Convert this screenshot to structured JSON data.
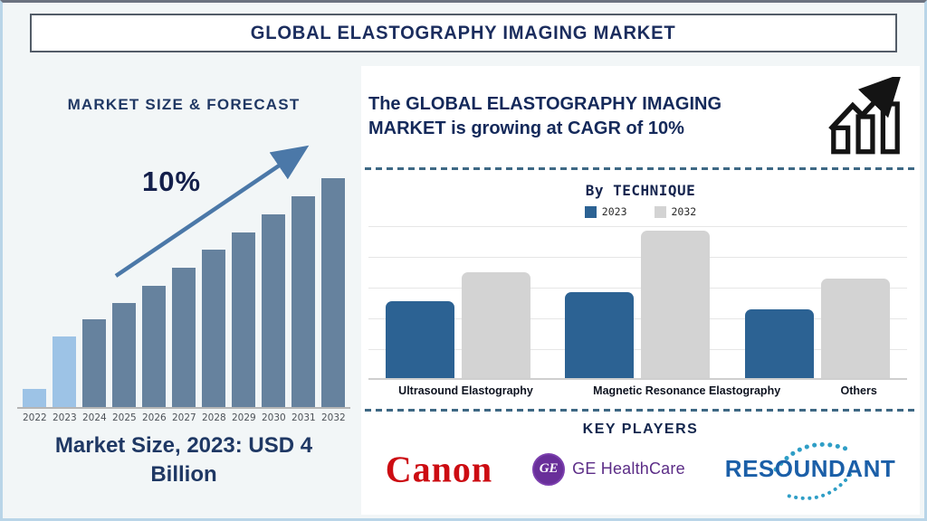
{
  "title_bar": {
    "text": "GLOBAL ELASTOGRAPHY IMAGING MARKET"
  },
  "theme": {
    "navy_text": "#1b2d5e",
    "dashed_line": "#3e6884",
    "page_background": "#f2f6f7",
    "panel_background": "#ffffff"
  },
  "left_panel": {
    "heading": "MARKET SIZE & FORECAST",
    "growth_label": "10%",
    "trend_arrow": "upward-diagonal-arrow",
    "caption": "Market Size, 2023: USD 4 Billion"
  },
  "right_panel": {
    "cagr_statement": "The GLOBAL ELASTOGRAPHY IMAGING MARKET is growing at CAGR of 10%",
    "growth_icon": "bar-chart-with-up-arrow",
    "technique_section": {
      "heading": "By TECHNIQUE"
    },
    "key_players_section": {
      "heading": "KEY PLAYERS",
      "players": [
        {
          "name": "Canon",
          "brand_color": "#cc0c12"
        },
        {
          "name": "GE HealthCare",
          "monogram": "GE",
          "brand_color": "#5c2d87"
        },
        {
          "name": "RESOUNDANT",
          "brand_color": "#1b5fa8"
        }
      ]
    }
  },
  "chart_data": [
    {
      "type": "bar",
      "title": "MARKET SIZE & FORECAST",
      "categories": [
        "2022",
        "2023",
        "2024",
        "2025",
        "2026",
        "2027",
        "2028",
        "2029",
        "2030",
        "2031",
        "2032"
      ],
      "values": [
        20,
        78,
        97,
        115,
        134,
        154,
        174,
        193,
        213,
        233,
        253
      ],
      "units": "relative bar height (no value axis shown)",
      "annotation": "10% growth trend arrow",
      "known_point": "2023 market size = USD 4 Billion",
      "highlight_categories": [
        "2022",
        "2023"
      ],
      "highlight_color": "#9dc3e6",
      "bar_color": "#66829e",
      "xlabel": "",
      "ylabel": "",
      "grid": false
    },
    {
      "type": "bar",
      "title": "By TECHNIQUE",
      "categories": [
        "Ultrasound Elastography",
        "Magnetic Resonance Elastography",
        "Others"
      ],
      "series": [
        {
          "name": "2023",
          "values": [
            85,
            95,
            76
          ],
          "color": "#2c6293"
        },
        {
          "name": "2032",
          "values": [
            117,
            163,
            110
          ],
          "color": "#d3d3d3"
        }
      ],
      "units": "relative bar height (no value axis shown)",
      "legend_position": "top",
      "grid": true
    }
  ]
}
